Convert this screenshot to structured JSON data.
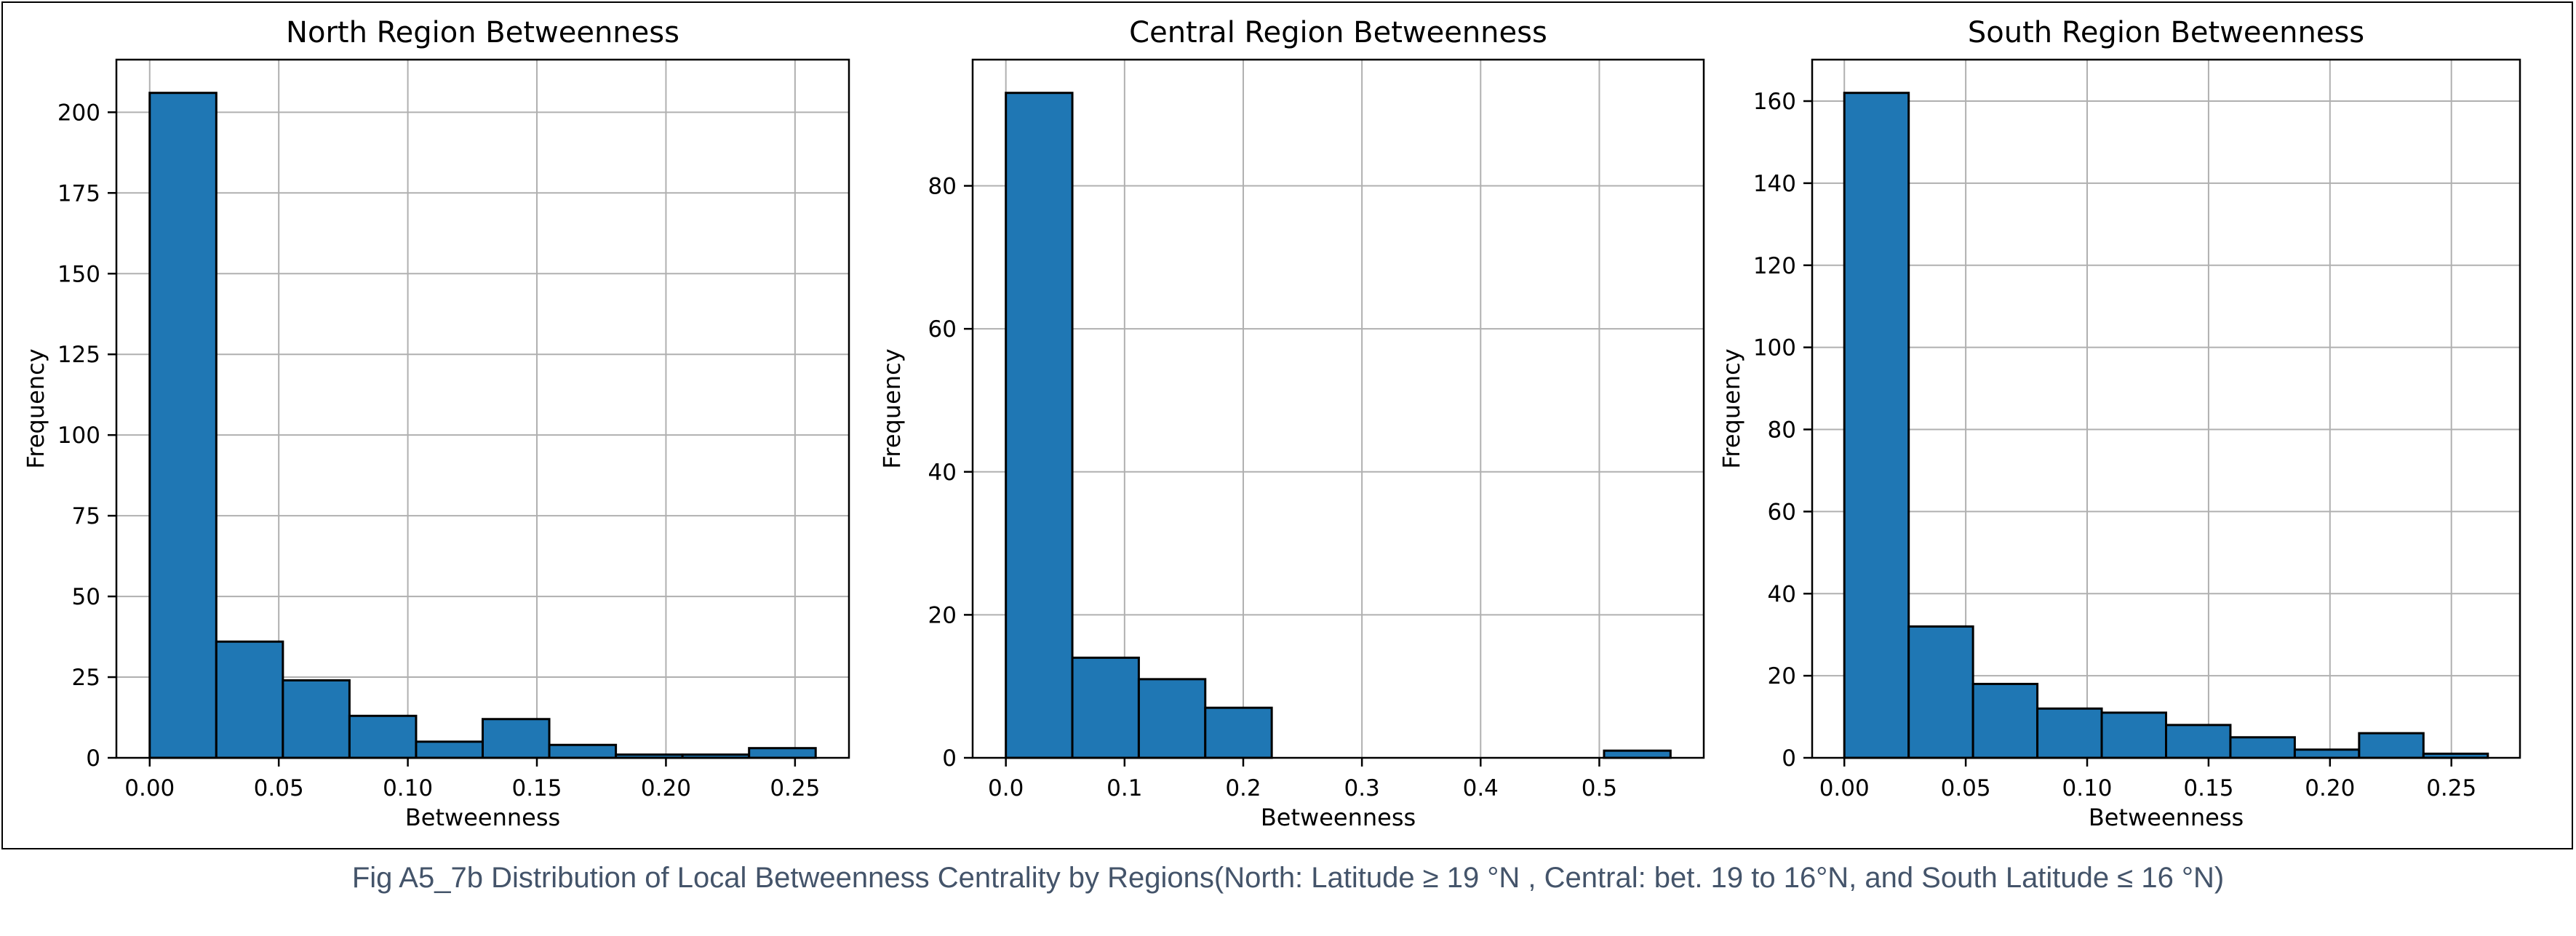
{
  "caption": "Fig A5_7b Distribution of Local Betweenness Centrality by Regions(North: Latitude ≥ 19 °N , Central: bet. 19 to 16°N, and South Latitude ≤ 16 °N)",
  "colors": {
    "bar_fill": "#1f77b4",
    "bar_edge": "#000000",
    "grid": "#b0b0b0",
    "caption": "#44546a"
  },
  "chart_data": [
    {
      "type": "bar",
      "title": "North Region Betweenness",
      "xlabel": "Betweenness",
      "ylabel": "Frequency",
      "bin_edges": [
        0.0,
        0.0258,
        0.0516,
        0.0774,
        0.1032,
        0.129,
        0.1548,
        0.1806,
        0.2064,
        0.2322,
        0.258
      ],
      "values": [
        206,
        36,
        24,
        13,
        5,
        12,
        4,
        1,
        1,
        3
      ],
      "xlim": [
        -0.0129,
        0.2709
      ],
      "ylim": [
        0,
        216.3
      ],
      "xticks": [
        0.0,
        0.05,
        0.1,
        0.15,
        0.2,
        0.25
      ],
      "xtick_labels": [
        "0.00",
        "0.05",
        "0.10",
        "0.15",
        "0.20",
        "0.25"
      ],
      "yticks": [
        0,
        25,
        50,
        75,
        100,
        125,
        150,
        175,
        200
      ],
      "ytick_labels": [
        "0",
        "25",
        "50",
        "75",
        "100",
        "125",
        "150",
        "175",
        "200"
      ],
      "grid": true
    },
    {
      "type": "bar",
      "title": "Central Region Betweenness",
      "xlabel": "Betweenness",
      "ylabel": "Frequency",
      "bin_edges": [
        0.0,
        0.056,
        0.112,
        0.168,
        0.224,
        0.28,
        0.336,
        0.392,
        0.448,
        0.504,
        0.56
      ],
      "values": [
        93,
        14,
        11,
        7,
        0,
        0,
        0,
        0,
        0,
        1
      ],
      "xlim": [
        -0.028,
        0.588
      ],
      "ylim": [
        0,
        97.65
      ],
      "xticks": [
        0.0,
        0.1,
        0.2,
        0.3,
        0.4,
        0.5
      ],
      "xtick_labels": [
        "0.0",
        "0.1",
        "0.2",
        "0.3",
        "0.4",
        "0.5"
      ],
      "yticks": [
        0,
        20,
        40,
        60,
        80
      ],
      "ytick_labels": [
        "0",
        "20",
        "40",
        "60",
        "80"
      ],
      "grid": true
    },
    {
      "type": "bar",
      "title": "South Region Betweenness",
      "xlabel": "Betweenness",
      "ylabel": "Frequency",
      "bin_edges": [
        0.0,
        0.0265,
        0.053,
        0.0795,
        0.106,
        0.1325,
        0.159,
        0.1855,
        0.212,
        0.2385,
        0.265
      ],
      "values": [
        162,
        32,
        18,
        12,
        11,
        8,
        5,
        2,
        6,
        1
      ],
      "xlim": [
        -0.01325,
        0.27825
      ],
      "ylim": [
        0,
        170.1
      ],
      "xticks": [
        0.0,
        0.05,
        0.1,
        0.15,
        0.2,
        0.25
      ],
      "xtick_labels": [
        "0.00",
        "0.05",
        "0.10",
        "0.15",
        "0.20",
        "0.25"
      ],
      "yticks": [
        0,
        20,
        40,
        60,
        80,
        100,
        120,
        140,
        160
      ],
      "ytick_labels": [
        "0",
        "20",
        "40",
        "60",
        "80",
        "100",
        "120",
        "140",
        "160"
      ],
      "grid": true
    }
  ]
}
